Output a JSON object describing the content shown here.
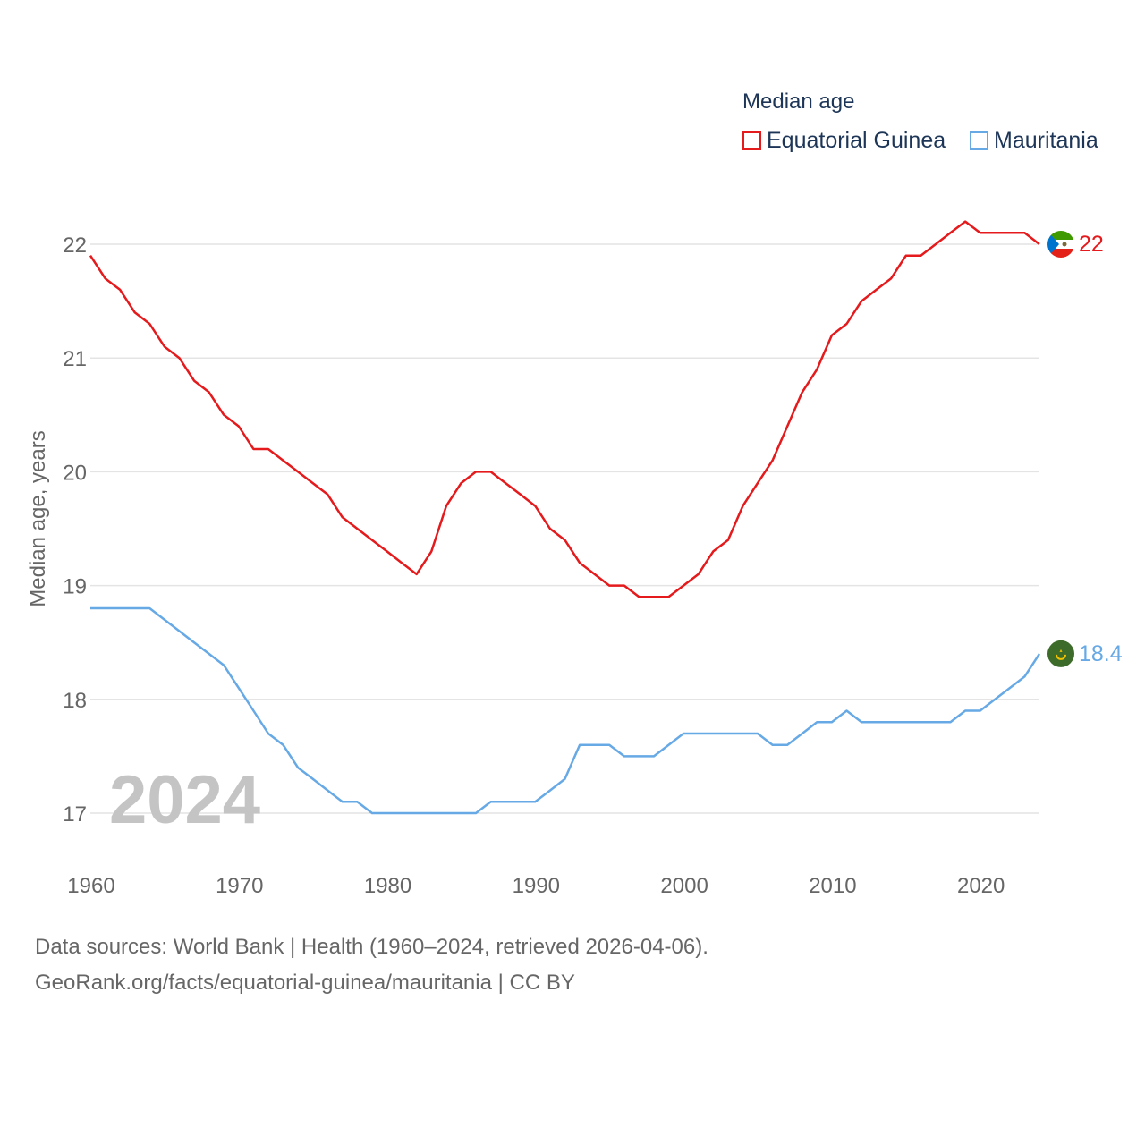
{
  "legend": {
    "title": "Median age",
    "items": [
      {
        "label": "Equatorial Guinea",
        "color": "#e41a1c"
      },
      {
        "label": "Mauritania",
        "color": "#67a9e5"
      }
    ]
  },
  "footer": {
    "line1": "Data sources: World Bank | Health (1960–2024, retrieved 2026-04-06).",
    "line2": "GeoRank.org/facts/equatorial-guinea/mauritania | CC BY"
  },
  "chart_data": {
    "type": "line",
    "title": "Median age",
    "xlabel": "",
    "ylabel": "Median age, years",
    "year_watermark": "2024",
    "xlim": [
      1960,
      2024
    ],
    "ylim": [
      16.5,
      22.5
    ],
    "grid": true,
    "x_ticks": [
      1960,
      1970,
      1980,
      1990,
      2000,
      2010,
      2020
    ],
    "y_ticks": [
      17,
      18,
      19,
      20,
      21,
      22
    ],
    "x": [
      1960,
      1961,
      1962,
      1963,
      1964,
      1965,
      1966,
      1967,
      1968,
      1969,
      1970,
      1971,
      1972,
      1973,
      1974,
      1975,
      1976,
      1977,
      1978,
      1979,
      1980,
      1981,
      1982,
      1983,
      1984,
      1985,
      1986,
      1987,
      1988,
      1989,
      1990,
      1991,
      1992,
      1993,
      1994,
      1995,
      1996,
      1997,
      1998,
      1999,
      2000,
      2001,
      2002,
      2003,
      2004,
      2005,
      2006,
      2007,
      2008,
      2009,
      2010,
      2011,
      2012,
      2013,
      2014,
      2015,
      2016,
      2017,
      2018,
      2019,
      2020,
      2021,
      2022,
      2023,
      2024
    ],
    "series": [
      {
        "name": "Equatorial Guinea",
        "color": "#e41a1c",
        "end_label": "22",
        "values": [
          21.9,
          21.7,
          21.6,
          21.4,
          21.3,
          21.1,
          21.0,
          20.8,
          20.7,
          20.5,
          20.4,
          20.2,
          20.2,
          20.1,
          20.0,
          19.9,
          19.8,
          19.6,
          19.5,
          19.4,
          19.3,
          19.2,
          19.1,
          19.3,
          19.7,
          19.9,
          20.0,
          20.0,
          19.9,
          19.8,
          19.7,
          19.5,
          19.4,
          19.2,
          19.1,
          19.0,
          19.0,
          18.9,
          18.9,
          18.9,
          19.0,
          19.1,
          19.3,
          19.4,
          19.7,
          19.9,
          20.1,
          20.4,
          20.7,
          20.9,
          21.2,
          21.3,
          21.5,
          21.6,
          21.7,
          21.9,
          21.9,
          22.0,
          22.1,
          22.2,
          22.1,
          22.1,
          22.1,
          22.1,
          22.0
        ]
      },
      {
        "name": "Mauritania",
        "color": "#67a9e5",
        "end_label": "18.4",
        "values": [
          18.8,
          18.8,
          18.8,
          18.8,
          18.8,
          18.7,
          18.6,
          18.5,
          18.4,
          18.3,
          18.1,
          17.9,
          17.7,
          17.6,
          17.4,
          17.3,
          17.2,
          17.1,
          17.1,
          17.0,
          17.0,
          17.0,
          17.0,
          17.0,
          17.0,
          17.0,
          17.0,
          17.1,
          17.1,
          17.1,
          17.1,
          17.2,
          17.3,
          17.6,
          17.6,
          17.6,
          17.5,
          17.5,
          17.5,
          17.6,
          17.7,
          17.7,
          17.7,
          17.7,
          17.7,
          17.7,
          17.6,
          17.6,
          17.7,
          17.8,
          17.8,
          17.9,
          17.8,
          17.8,
          17.8,
          17.8,
          17.8,
          17.8,
          17.8,
          17.9,
          17.9,
          18.0,
          18.1,
          18.2,
          18.4
        ]
      }
    ]
  }
}
